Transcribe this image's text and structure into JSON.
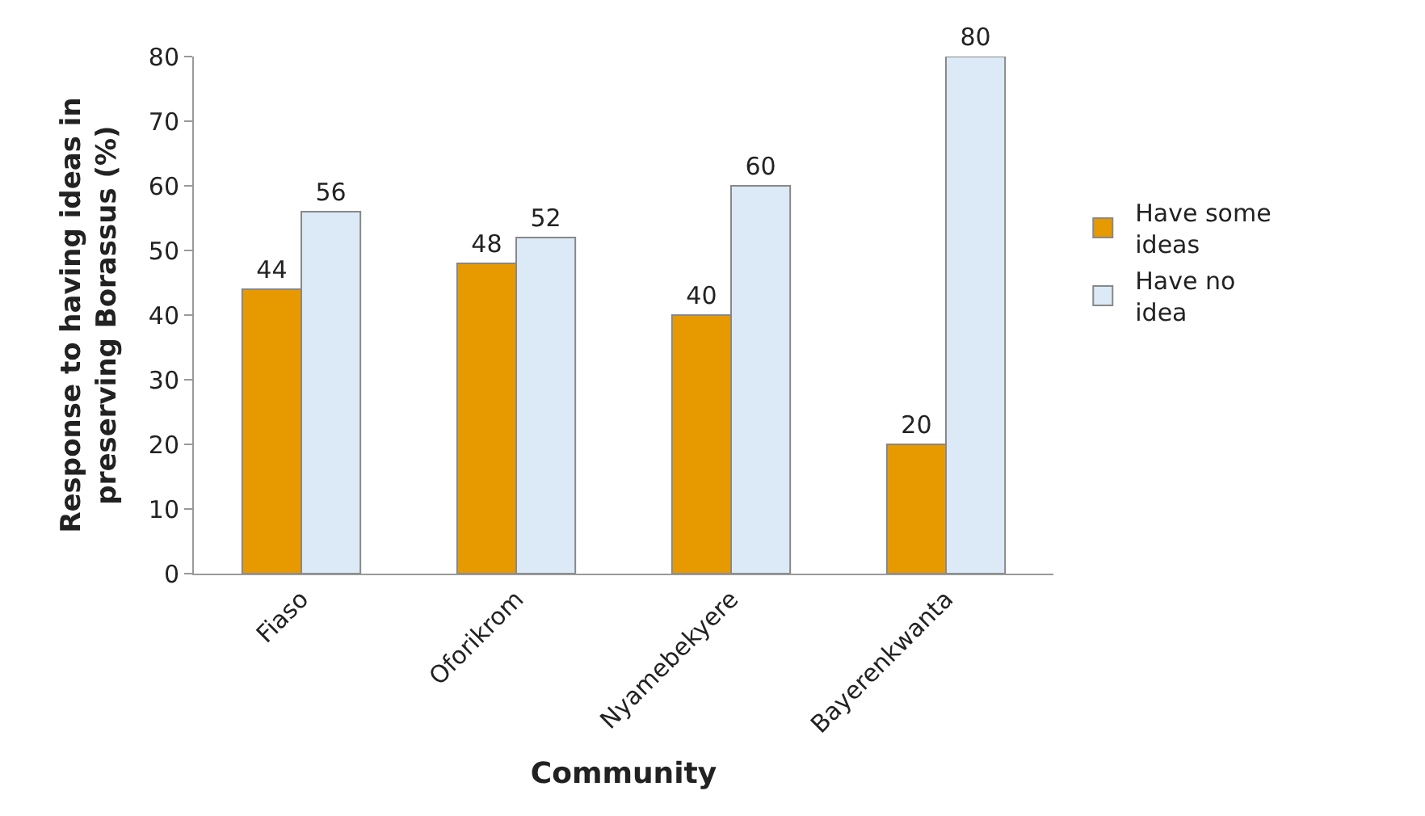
{
  "chart_data": {
    "type": "bar",
    "xlabel": "Community",
    "ylabel": "Response to having ideas in preserving Borassus (%)",
    "categories": [
      "Fiaso",
      "Oforikrom",
      "Nyamebekyere",
      "Bayerenkwanta"
    ],
    "series": [
      {
        "name": "Have some ideas",
        "color": "#e69a00",
        "values": [
          44,
          48,
          40,
          20
        ]
      },
      {
        "name": "Have no idea",
        "color": "#dceaf8",
        "values": [
          56,
          52,
          60,
          80
        ]
      }
    ],
    "ylim": [
      0,
      80
    ],
    "yticks": [
      0,
      10,
      20,
      30,
      40,
      50,
      60,
      70,
      80
    ],
    "data_labels": true,
    "legend": "right",
    "grid": false
  }
}
